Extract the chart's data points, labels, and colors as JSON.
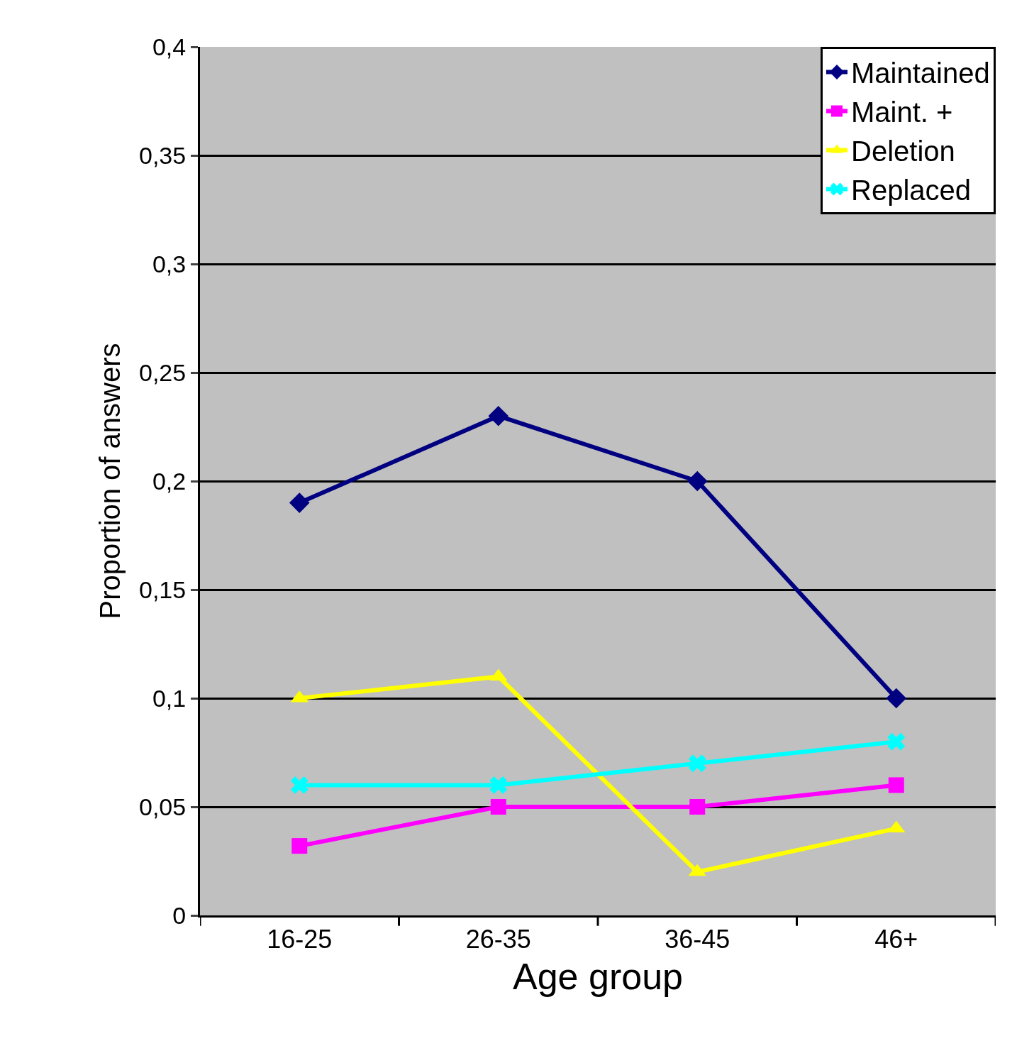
{
  "chart_data": {
    "type": "line",
    "xlabel": "Age group",
    "ylabel": "Proportion of answers",
    "categories": [
      "16-25",
      "26-35",
      "36-45",
      "46+"
    ],
    "series": [
      {
        "name": "Maintained",
        "color": "#000080",
        "marker": "diamond",
        "values": [
          0.19,
          0.23,
          0.2,
          0.1
        ]
      },
      {
        "name": "Maint. +",
        "color": "#ff00ff",
        "marker": "square",
        "values": [
          0.032,
          0.05,
          0.05,
          0.06
        ]
      },
      {
        "name": "Deletion",
        "color": "#ffff00",
        "marker": "triangle",
        "values": [
          0.1,
          0.11,
          0.02,
          0.04
        ]
      },
      {
        "name": "Replaced",
        "color": "#00ffff",
        "marker": "cross",
        "values": [
          0.06,
          0.06,
          0.07,
          0.08
        ]
      }
    ],
    "ylim": [
      0,
      0.4
    ],
    "yticks": [
      {
        "value": 0,
        "label": "0"
      },
      {
        "value": 0.05,
        "label": "0,05"
      },
      {
        "value": 0.1,
        "label": "0,1"
      },
      {
        "value": 0.15,
        "label": "0,15"
      },
      {
        "value": 0.2,
        "label": "0,2"
      },
      {
        "value": 0.25,
        "label": "0,25"
      },
      {
        "value": 0.3,
        "label": "0,3"
      },
      {
        "value": 0.35,
        "label": "0,35"
      },
      {
        "value": 0.4,
        "label": "0,4"
      }
    ],
    "grid": "y",
    "legend": "top right",
    "line_style": "solid"
  }
}
